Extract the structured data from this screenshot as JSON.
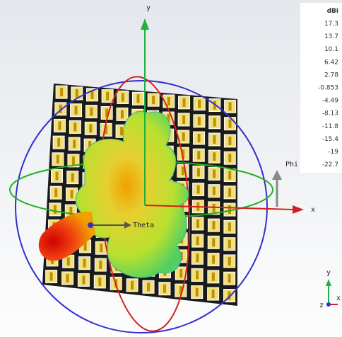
{
  "scene": {
    "axes": {
      "y": "y",
      "x": "x",
      "theta": "Theta",
      "phi": "Phi"
    },
    "legend": {
      "unit": "dBi",
      "values": [
        17.3,
        13.7,
        10.1,
        6.42,
        2.78,
        -0.853,
        -4.49,
        -8.13,
        -11.8,
        -15.4,
        -19,
        -22.7
      ]
    },
    "triad": {
      "y": "y",
      "z": "z",
      "x": "x"
    }
  }
}
